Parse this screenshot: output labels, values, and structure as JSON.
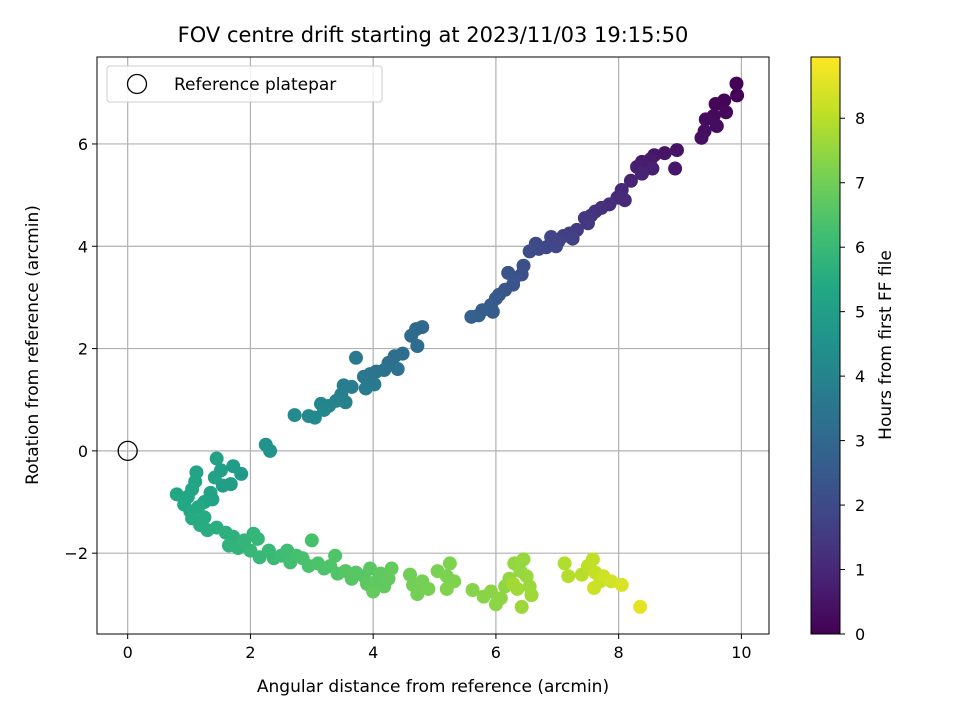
{
  "chart_data": {
    "type": "scatter",
    "title": "FOV centre drift starting at 2023/11/03 19:15:50",
    "xlabel": "Angular distance from reference (arcmin)",
    "ylabel": "Rotation from reference (arcmin)",
    "xlim": [
      -0.5,
      10.45
    ],
    "ylim": [
      -3.58,
      7.7
    ],
    "xticks": [
      0,
      2,
      4,
      6,
      8,
      10
    ],
    "yticks": [
      -2,
      0,
      2,
      4,
      6
    ],
    "xtick_labels": [
      "0",
      "2",
      "4",
      "6",
      "8",
      "10"
    ],
    "ytick_labels": [
      "−2",
      "0",
      "2",
      "4",
      "6"
    ],
    "grid": true,
    "legend": {
      "placement": "upper-left",
      "entries": [
        "Reference platepar"
      ]
    },
    "reference_point": {
      "x": 0,
      "y": 0
    },
    "colorbar": {
      "label": "Hours from first FF file",
      "colormap": "viridis",
      "range": [
        0,
        8.95
      ],
      "ticks": [
        0,
        1,
        2,
        3,
        4,
        5,
        6,
        7,
        8
      ],
      "tick_labels": [
        "0",
        "1",
        "2",
        "3",
        "4",
        "5",
        "6",
        "7",
        "8"
      ]
    },
    "series": [
      {
        "columns": [
          "x_arcmin",
          "y_arcmin",
          "hours"
        ],
        "points": [
          [
            9.92,
            7.18,
            0.02
          ],
          [
            9.93,
            6.95,
            0.06
          ],
          [
            9.72,
            6.85,
            0.1
          ],
          [
            9.58,
            6.78,
            0.14
          ],
          [
            9.75,
            6.62,
            0.18
          ],
          [
            9.55,
            6.55,
            0.22
          ],
          [
            9.42,
            6.48,
            0.26
          ],
          [
            9.6,
            6.35,
            0.3
          ],
          [
            9.4,
            6.25,
            0.34
          ],
          [
            9.35,
            6.12,
            0.38
          ],
          [
            8.95,
            5.88,
            0.45
          ],
          [
            8.75,
            5.82,
            0.5
          ],
          [
            8.58,
            5.78,
            0.55
          ],
          [
            8.92,
            5.52,
            0.6
          ],
          [
            8.52,
            5.7,
            0.65
          ],
          [
            8.38,
            5.65,
            0.7
          ],
          [
            8.3,
            5.55,
            0.75
          ],
          [
            8.55,
            5.52,
            0.8
          ],
          [
            8.38,
            5.42,
            0.85
          ],
          [
            8.2,
            5.28,
            0.9
          ],
          [
            8.05,
            5.1,
            1.0
          ],
          [
            8.1,
            4.9,
            1.05
          ],
          [
            7.98,
            4.95,
            1.1
          ],
          [
            7.85,
            4.82,
            1.15
          ],
          [
            7.72,
            4.75,
            1.2
          ],
          [
            7.62,
            4.68,
            1.3
          ],
          [
            7.55,
            4.6,
            1.35
          ],
          [
            7.45,
            4.55,
            1.4
          ],
          [
            7.5,
            4.45,
            1.45
          ],
          [
            7.32,
            4.32,
            1.55
          ],
          [
            7.2,
            4.25,
            1.6
          ],
          [
            7.1,
            4.2,
            1.65
          ],
          [
            7.25,
            4.15,
            1.7
          ],
          [
            7.02,
            4.1,
            1.75
          ],
          [
            6.9,
            4.18,
            1.8
          ],
          [
            6.98,
            4.0,
            1.85
          ],
          [
            6.82,
            3.98,
            1.9
          ],
          [
            6.7,
            3.95,
            1.95
          ],
          [
            6.65,
            4.05,
            2.0
          ],
          [
            6.55,
            3.9,
            2.05
          ],
          [
            6.45,
            3.62,
            2.15
          ],
          [
            6.42,
            3.45,
            2.2
          ],
          [
            6.3,
            3.38,
            2.25
          ],
          [
            6.2,
            3.48,
            2.3
          ],
          [
            6.28,
            3.25,
            2.35
          ],
          [
            6.15,
            3.15,
            2.4
          ],
          [
            6.05,
            3.05,
            2.45
          ],
          [
            6.0,
            2.98,
            2.5
          ],
          [
            5.92,
            2.85,
            2.55
          ],
          [
            5.95,
            2.72,
            2.6
          ],
          [
            5.78,
            2.75,
            2.65
          ],
          [
            5.72,
            2.65,
            2.7
          ],
          [
            5.6,
            2.62,
            2.75
          ],
          [
            4.8,
            2.42,
            3.0
          ],
          [
            4.7,
            2.38,
            3.05
          ],
          [
            4.62,
            2.25,
            3.1
          ],
          [
            4.72,
            2.05,
            3.15
          ],
          [
            4.48,
            1.9,
            3.2
          ],
          [
            4.35,
            1.85,
            3.25
          ],
          [
            4.25,
            1.72,
            3.3
          ],
          [
            4.4,
            1.6,
            3.35
          ],
          [
            4.18,
            1.58,
            3.4
          ],
          [
            4.05,
            1.55,
            3.45
          ],
          [
            3.95,
            1.5,
            3.5
          ],
          [
            3.85,
            1.45,
            3.55
          ],
          [
            3.72,
            1.82,
            3.6
          ],
          [
            4.02,
            1.3,
            3.65
          ],
          [
            3.88,
            1.22,
            3.7
          ],
          [
            3.65,
            1.25,
            3.75
          ],
          [
            3.52,
            1.28,
            3.8
          ],
          [
            3.48,
            1.1,
            3.85
          ],
          [
            3.55,
            0.95,
            3.9
          ],
          [
            3.4,
            0.98,
            3.95
          ],
          [
            3.28,
            0.88,
            4.0
          ],
          [
            3.15,
            0.92,
            4.05
          ],
          [
            3.2,
            0.8,
            4.1
          ],
          [
            2.95,
            0.68,
            4.15
          ],
          [
            3.05,
            0.65,
            4.2
          ],
          [
            2.72,
            0.7,
            4.25
          ],
          [
            2.25,
            0.12,
            4.5
          ],
          [
            2.32,
            0.0,
            4.55
          ],
          [
            1.85,
            -0.45,
            4.85
          ],
          [
            1.72,
            -0.3,
            4.9
          ],
          [
            1.68,
            -0.65,
            4.95
          ],
          [
            1.55,
            -0.68,
            5.0
          ],
          [
            1.52,
            -0.38,
            5.05
          ],
          [
            1.45,
            -0.15,
            5.08
          ],
          [
            1.42,
            -0.52,
            5.1
          ],
          [
            1.35,
            -0.82,
            5.15
          ],
          [
            1.38,
            -0.95,
            5.18
          ],
          [
            1.25,
            -1.0,
            5.2
          ],
          [
            1.12,
            -0.42,
            5.22
          ],
          [
            1.1,
            -0.6,
            5.25
          ],
          [
            1.05,
            -0.75,
            5.28
          ],
          [
            0.98,
            -0.9,
            5.3
          ],
          [
            0.8,
            -0.85,
            5.35
          ],
          [
            0.92,
            -1.05,
            5.38
          ],
          [
            1.02,
            -1.18,
            5.4
          ],
          [
            1.15,
            -1.1,
            5.42
          ],
          [
            1.05,
            -1.32,
            5.45
          ],
          [
            1.25,
            -1.3,
            5.48
          ],
          [
            1.18,
            -1.45,
            5.5
          ],
          [
            1.3,
            -1.55,
            5.55
          ],
          [
            1.45,
            -1.5,
            5.6
          ],
          [
            1.6,
            -1.6,
            5.65
          ],
          [
            1.72,
            -1.68,
            5.7
          ],
          [
            1.65,
            -1.85,
            5.75
          ],
          [
            1.8,
            -1.9,
            5.8
          ],
          [
            1.9,
            -1.75,
            5.85
          ],
          [
            2.05,
            -1.62,
            5.88
          ],
          [
            2.12,
            -1.72,
            5.9
          ],
          [
            2.0,
            -1.95,
            5.92
          ],
          [
            2.15,
            -2.08,
            5.95
          ],
          [
            2.3,
            -1.95,
            6.0
          ],
          [
            2.38,
            -2.1,
            6.05
          ],
          [
            2.5,
            -2.05,
            6.1
          ],
          [
            2.6,
            -1.95,
            6.15
          ],
          [
            2.65,
            -2.18,
            6.2
          ],
          [
            2.75,
            -2.05,
            6.25
          ],
          [
            2.85,
            -2.1,
            6.3
          ],
          [
            3.0,
            -1.75,
            6.32
          ],
          [
            2.95,
            -2.25,
            6.35
          ],
          [
            3.1,
            -2.2,
            6.4
          ],
          [
            3.2,
            -2.3,
            6.42
          ],
          [
            3.3,
            -2.25,
            6.45
          ],
          [
            3.38,
            -2.05,
            6.48
          ],
          [
            3.42,
            -2.4,
            6.5
          ],
          [
            3.55,
            -2.35,
            6.55
          ],
          [
            3.65,
            -2.5,
            6.58
          ],
          [
            3.72,
            -2.38,
            6.6
          ],
          [
            3.85,
            -2.45,
            6.62
          ],
          [
            3.95,
            -2.3,
            6.65
          ],
          [
            3.9,
            -2.6,
            6.68
          ],
          [
            4.05,
            -2.55,
            6.7
          ],
          [
            4.12,
            -2.4,
            6.72
          ],
          [
            4.18,
            -2.65,
            6.75
          ],
          [
            4.25,
            -2.5,
            6.78
          ],
          [
            4.3,
            -2.3,
            6.8
          ],
          [
            4.0,
            -2.75,
            6.82
          ],
          [
            4.6,
            -2.42,
            7.0
          ],
          [
            4.65,
            -2.62,
            7.02
          ],
          [
            4.72,
            -2.8,
            7.05
          ],
          [
            4.8,
            -2.55,
            7.08
          ],
          [
            4.9,
            -2.7,
            7.1
          ],
          [
            5.05,
            -2.35,
            7.15
          ],
          [
            5.2,
            -2.45,
            7.18
          ],
          [
            5.25,
            -2.2,
            7.2
          ],
          [
            5.32,
            -2.55,
            7.22
          ],
          [
            5.2,
            -2.7,
            7.25
          ],
          [
            5.62,
            -2.72,
            7.3
          ],
          [
            5.8,
            -2.85,
            7.35
          ],
          [
            5.92,
            -2.75,
            7.38
          ],
          [
            6.0,
            -3.0,
            7.4
          ],
          [
            6.08,
            -2.88,
            7.42
          ],
          [
            6.15,
            -2.65,
            7.45
          ],
          [
            6.22,
            -2.5,
            7.48
          ],
          [
            6.3,
            -2.2,
            7.5
          ],
          [
            6.4,
            -2.35,
            7.52
          ],
          [
            6.45,
            -2.12,
            7.55
          ],
          [
            6.5,
            -2.45,
            7.58
          ],
          [
            6.55,
            -2.65,
            7.6
          ],
          [
            6.42,
            -3.05,
            7.62
          ],
          [
            6.58,
            -2.82,
            7.65
          ],
          [
            6.35,
            -2.7,
            7.68
          ],
          [
            6.28,
            -2.6,
            7.7
          ],
          [
            7.12,
            -2.2,
            7.9
          ],
          [
            7.18,
            -2.45,
            7.95
          ],
          [
            7.4,
            -2.42,
            8.0
          ],
          [
            7.5,
            -2.25,
            8.05
          ],
          [
            7.58,
            -2.12,
            8.1
          ],
          [
            7.62,
            -2.38,
            8.15
          ],
          [
            7.7,
            -2.55,
            8.2
          ],
          [
            7.6,
            -2.68,
            8.25
          ],
          [
            7.75,
            -2.45,
            8.3
          ],
          [
            7.88,
            -2.55,
            8.35
          ],
          [
            8.05,
            -2.62,
            8.45
          ],
          [
            8.35,
            -3.05,
            8.6
          ]
        ]
      }
    ]
  }
}
